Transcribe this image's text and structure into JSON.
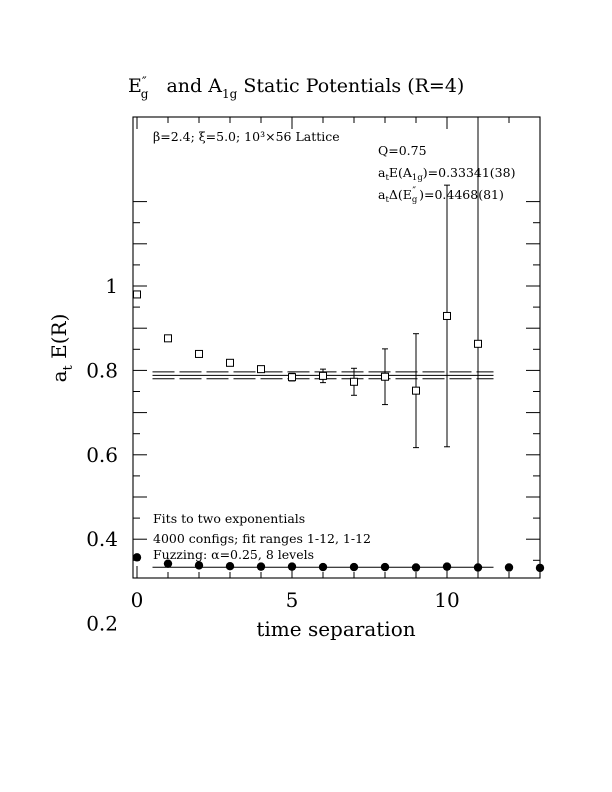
{
  "chart_data": {
    "type": "scatter",
    "title": "E″g and A1g Static Potentials (R=4)",
    "title_parts": {
      "e": "E",
      "e_prime": "″",
      "e_sub": "g",
      "mid": "and A",
      "a_sub": "1g",
      "rest": "Static Potentials (R=4)"
    },
    "xlabel": "time separation",
    "ylabel": "a",
    "ylabel_sub": "t",
    "ylabel_rest": "E(R)",
    "xlim": [
      0,
      13
    ],
    "ylim": [
      0.1,
      1.2
    ],
    "xticks": [
      0,
      5,
      10
    ],
    "xtick_labels": [
      "0",
      "5",
      "10"
    ],
    "yticks": [
      0.2,
      0.4,
      0.6,
      0.8,
      1.0
    ],
    "ytick_labels": [
      "0.2",
      "0.4",
      "0.6",
      "0.8",
      "1"
    ],
    "grid": false,
    "header_text": "β=2.4; ξ=5.0; 10³×56 Lattice",
    "params": {
      "q": "Q=0.75",
      "ea_pre": "a",
      "ea_sub": "t",
      "ea_mid": "E(A",
      "ea_sub2": "1g",
      "ea_val": ")=0.33341(38)",
      "ed_pre": "a",
      "ed_sub": "t",
      "ed_mid": "Δ(E",
      "ed_sub2": "g",
      "ed_prime": "″",
      "ed_val": ")=0.4468(81)"
    },
    "notes": [
      "Fits to two exponentials",
      "4000 configs; fit ranges 1-12, 1-12",
      "Fuzzing: α=0.25, 8 levels"
    ],
    "series": [
      {
        "marker": "open-square",
        "x": [
          0,
          1,
          2,
          3,
          4,
          5,
          6,
          7,
          8,
          9,
          10,
          11
        ],
        "y": [
          0.98,
          0.876,
          0.839,
          0.818,
          0.803,
          0.784,
          0.787,
          0.773,
          0.785,
          0.752,
          0.929,
          0.863
        ],
        "err": [
          0.003,
          0.005,
          0.005,
          0.006,
          0.007,
          0.009,
          0.016,
          0.032,
          0.066,
          0.135,
          0.31,
          0.61
        ]
      },
      {
        "marker": "filled-circle",
        "x": [
          0,
          1,
          2,
          3,
          4,
          5,
          6,
          7,
          8,
          9,
          10,
          11,
          12,
          13
        ],
        "y": [
          0.357,
          0.342,
          0.338,
          0.336,
          0.335,
          0.335,
          0.334,
          0.334,
          0.334,
          0.333,
          0.335,
          0.333,
          0.333,
          0.332
        ],
        "err": [
          0,
          0,
          0,
          0,
          0,
          0,
          0,
          0,
          0,
          0,
          0,
          0,
          0,
          0
        ]
      }
    ],
    "fit_lines": [
      {
        "x_range": [
          0.5,
          11.5
        ],
        "y": 0.7802,
        "style": "dashed"
      },
      {
        "x_range": [
          0.5,
          11.5
        ],
        "y": 0.7883,
        "style": "solid"
      },
      {
        "x_range": [
          0.5,
          11.5
        ],
        "y": 0.7964,
        "style": "dashed"
      },
      {
        "x_range": [
          0.5,
          11.5
        ],
        "y": 0.3334,
        "style": "solid"
      }
    ]
  }
}
